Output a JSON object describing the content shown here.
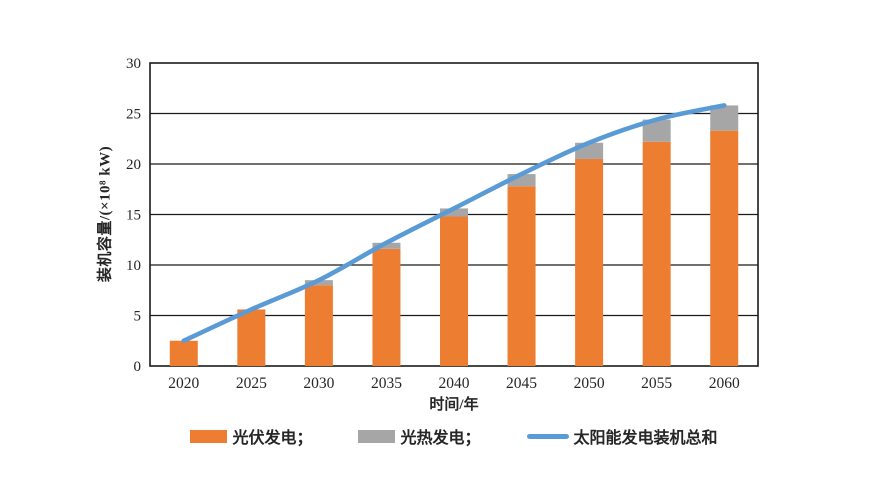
{
  "chart_data": {
    "type": "bar",
    "combo": "stacked-bar-with-line",
    "title": "",
    "categories": [
      "2020",
      "2025",
      "2030",
      "2035",
      "2040",
      "2045",
      "2050",
      "2055",
      "2060"
    ],
    "series": [
      {
        "name": "光伏发电",
        "type": "bar",
        "stack": true,
        "color": "#ED7D31",
        "values": [
          2.5,
          5.6,
          8.0,
          11.6,
          14.8,
          17.8,
          20.5,
          22.2,
          23.3
        ]
      },
      {
        "name": "光热发电",
        "type": "bar",
        "stack": true,
        "color": "#A6A6A6",
        "values": [
          0.0,
          0.0,
          0.5,
          0.6,
          0.8,
          1.2,
          1.6,
          2.2,
          2.5
        ]
      },
      {
        "name": "太阳能发电装机总和",
        "type": "line",
        "color": "#5B9BD5",
        "values": [
          2.5,
          5.6,
          8.5,
          12.2,
          15.6,
          19.0,
          22.1,
          24.4,
          25.8
        ]
      }
    ],
    "xlabel": "时间/年",
    "ylabel": "装机容量/(×10⁸ kW)",
    "ylim": [
      0,
      30
    ],
    "yticks": [
      0,
      5,
      10,
      15,
      20,
      25,
      30
    ],
    "grid": "horizontal",
    "legend_position": "bottom",
    "legend_labels": [
      "光伏发电；",
      "光热发电；",
      "太阳能发电装机总和"
    ]
  }
}
